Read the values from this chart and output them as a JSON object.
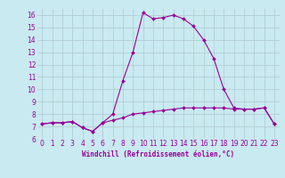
{
  "xlabel": "Windchill (Refroidissement éolien,°C)",
  "background_color": "#c8eaf0",
  "grid_color": "#b0c8d0",
  "line_color": "#990099",
  "xlim": [
    -0.5,
    23.5
  ],
  "ylim": [
    6,
    16.5
  ],
  "xticks": [
    0,
    1,
    2,
    3,
    4,
    5,
    6,
    7,
    8,
    9,
    10,
    11,
    12,
    13,
    14,
    15,
    16,
    17,
    18,
    19,
    20,
    21,
    22,
    23
  ],
  "yticks": [
    6,
    7,
    8,
    9,
    10,
    11,
    12,
    13,
    14,
    15,
    16
  ],
  "line1_x": [
    0,
    1,
    2,
    3,
    4,
    5,
    6,
    7,
    8,
    9,
    10,
    11,
    12,
    13,
    14,
    15,
    16,
    17,
    18,
    19,
    20,
    21,
    22,
    23
  ],
  "line1_y": [
    7.2,
    7.3,
    7.3,
    7.4,
    6.9,
    6.6,
    7.3,
    7.5,
    7.7,
    8.0,
    8.1,
    8.2,
    8.3,
    8.4,
    8.5,
    8.5,
    8.5,
    8.5,
    8.5,
    8.4,
    8.4,
    8.4,
    8.5,
    7.2
  ],
  "line2_x": [
    0,
    1,
    2,
    3,
    4,
    5,
    6,
    7,
    8,
    9,
    10,
    11,
    12,
    13,
    14,
    15,
    16,
    17,
    18,
    19,
    20,
    21,
    22,
    23
  ],
  "line2_y": [
    7.2,
    7.3,
    7.3,
    7.4,
    6.9,
    6.6,
    7.3,
    8.0,
    10.7,
    13.0,
    16.2,
    15.7,
    15.8,
    16.0,
    15.7,
    15.1,
    14.0,
    12.5,
    10.0,
    8.5,
    8.4,
    8.4,
    8.5,
    7.2
  ],
  "tick_fontsize": 5.5,
  "xlabel_fontsize": 5.5,
  "marker_size": 2.0,
  "linewidth": 0.8
}
